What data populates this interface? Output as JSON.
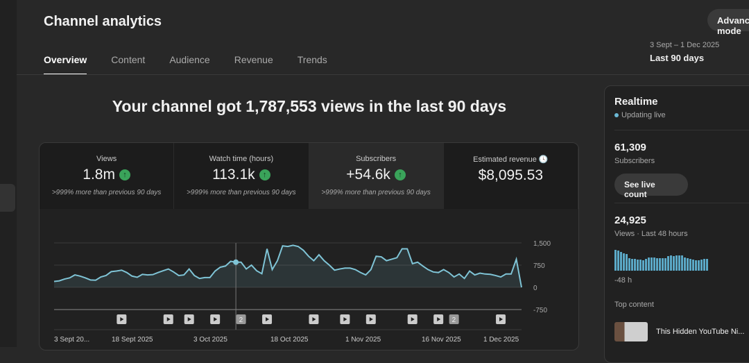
{
  "header": {
    "title": "Channel analytics",
    "advanced_label": "Advanced mode",
    "date_range": "3 Sept – 1 Dec 2025",
    "period": "Last 90 days"
  },
  "tabs": [
    {
      "label": "Overview",
      "active": true
    },
    {
      "label": "Content"
    },
    {
      "label": "Audience"
    },
    {
      "label": "Revenue"
    },
    {
      "label": "Trends"
    }
  ],
  "headline": "Your channel got 1,787,553 views in the last 90 days",
  "metrics": [
    {
      "label": "Views",
      "value": "1.8m",
      "compare": ">999% more than previous 90 days",
      "trend": "up"
    },
    {
      "label": "Watch time (hours)",
      "value": "113.1k",
      "compare": ">999% more than previous 90 days",
      "trend": "up"
    },
    {
      "label": "Subscribers",
      "value": "+54.6k",
      "compare": ">999% more than previous 90 days",
      "trend": "up",
      "selected": true
    },
    {
      "label": "Estimated revenue",
      "value": "$8,095.53",
      "icon": "clock-icon"
    }
  ],
  "chart_data": {
    "type": "area",
    "ylim": [
      -750,
      1500
    ],
    "xlim": [
      "2025-09-03",
      "2025-12-02"
    ],
    "yticks": [
      "1,500",
      "750",
      "0",
      "-750"
    ],
    "xticks": [
      "3 Sept 20...",
      "18 Sept 2025",
      "3 Oct 2025",
      "18 Oct 2025",
      "1 Nov 2025",
      "16 Nov 2025",
      "1 Dec 2025"
    ],
    "color": "#7fc4d6",
    "hover_date": "2025-10-08",
    "values": [
      200,
      220,
      280,
      320,
      420,
      380,
      320,
      250,
      240,
      350,
      400,
      530,
      550,
      580,
      500,
      380,
      340,
      440,
      420,
      430,
      500,
      560,
      620,
      520,
      400,
      420,
      620,
      400,
      300,
      330,
      330,
      550,
      680,
      720,
      880,
      850,
      850,
      620,
      750,
      560,
      460,
      1300,
      600,
      900,
      1400,
      1380,
      1420,
      1380,
      1250,
      1050,
      900,
      1100,
      900,
      750,
      580,
      620,
      650,
      650,
      600,
      500,
      420,
      600,
      1050,
      1030,
      900,
      950,
      1000,
      1300,
      1300,
      800,
      850,
      720,
      600,
      520,
      500,
      600,
      500,
      350,
      450,
      300,
      550,
      420,
      480,
      450,
      440,
      400,
      350,
      450,
      450,
      950,
      0
    ],
    "markers": [
      {
        "date": "2025-09-16",
        "label": ""
      },
      {
        "date": "2025-09-25",
        "label": ""
      },
      {
        "date": "2025-09-29",
        "label": ""
      },
      {
        "date": "2025-10-04",
        "label": ""
      },
      {
        "date": "2025-10-09",
        "label": "2"
      },
      {
        "date": "2025-10-14",
        "label": ""
      },
      {
        "date": "2025-10-23",
        "label": ""
      },
      {
        "date": "2025-10-29",
        "label": ""
      },
      {
        "date": "2025-11-03",
        "label": ""
      },
      {
        "date": "2025-11-11",
        "label": ""
      },
      {
        "date": "2025-11-16",
        "label": ""
      },
      {
        "date": "2025-11-19",
        "label": "2"
      },
      {
        "date": "2025-11-28",
        "label": ""
      }
    ]
  },
  "realtime": {
    "title": "Realtime",
    "status": "Updating live",
    "subscribers": "61,309",
    "subscribers_label": "Subscribers",
    "see_live": "See live count",
    "views": "24,925",
    "views_label": "Views · Last 48 hours",
    "axis_label": "-48 h",
    "top_content_label": "Top content",
    "top_item": "This Hidden YouTube Ni...",
    "bars": [
      30,
      29,
      27,
      25,
      24,
      18,
      17,
      17,
      16,
      16,
      15,
      17,
      19,
      19,
      19,
      18,
      18,
      18,
      18,
      21,
      22,
      21,
      22,
      22,
      22,
      19,
      18,
      17,
      16,
      15,
      15,
      16,
      17,
      17
    ]
  }
}
